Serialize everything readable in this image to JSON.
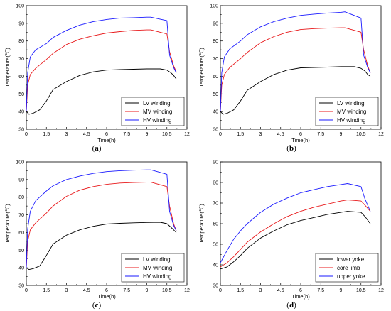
{
  "colors": {
    "black": "#000000",
    "red": "#e8191b",
    "blue": "#1a1aff"
  },
  "chart_data": [
    {
      "type": "line",
      "panel": "a",
      "xlabel": "Time(h)",
      "ylabel": "Temperature(℃)",
      "xlim": [
        0,
        12
      ],
      "ylim": [
        30,
        100
      ],
      "xticks": [
        "0",
        "1.5",
        "3",
        "4.5",
        "6",
        "7.5",
        "9",
        "10.5",
        "12"
      ],
      "yticks": [
        "30",
        "40",
        "50",
        "60",
        "70",
        "80",
        "90",
        "100"
      ],
      "legend": "bottom-right",
      "series": [
        {
          "name": "LV winding",
          "color": "#000000",
          "x": [
            0,
            0.2,
            0.5,
            1,
            1.5,
            2,
            3,
            4,
            5,
            6,
            7,
            8,
            9,
            10,
            10.5,
            10.8,
            11,
            11.2
          ],
          "y": [
            40,
            38.5,
            39,
            41,
            46,
            52.5,
            57,
            60.5,
            62.5,
            63.5,
            63.8,
            64,
            64.2,
            64.2,
            63.5,
            62,
            60.5,
            58.5
          ]
        },
        {
          "name": "MV winding",
          "color": "#e8191b",
          "x": [
            0,
            0.1,
            0.3,
            0.7,
            1.5,
            2,
            3,
            4,
            5,
            6,
            7,
            8,
            9,
            9.3,
            10.5,
            10.7,
            11,
            11.2
          ],
          "y": [
            40,
            55,
            61,
            64.5,
            69.5,
            73,
            78,
            81,
            83,
            84.5,
            85.3,
            86,
            86.3,
            86.3,
            84,
            74,
            66,
            62.5
          ]
        },
        {
          "name": "HV winding",
          "color": "#1a1aff",
          "x": [
            0,
            0.1,
            0.3,
            0.7,
            1.5,
            2,
            3,
            4,
            5,
            6,
            7,
            8,
            9,
            9.3,
            10.5,
            10.7,
            11,
            11.2
          ],
          "y": [
            40,
            62,
            71,
            75,
            78.5,
            82,
            86,
            89,
            91,
            92.2,
            93,
            93.2,
            93.5,
            93.5,
            91.5,
            72,
            65,
            62
          ]
        }
      ]
    },
    {
      "type": "line",
      "panel": "b",
      "xlabel": "Time(h)",
      "ylabel": "Temperature(℃)",
      "xlim": [
        0,
        12
      ],
      "ylim": [
        30,
        100
      ],
      "xticks": [
        "0",
        "1.5",
        "3",
        "4.5",
        "6",
        "7.5",
        "9",
        "10.5",
        "12"
      ],
      "yticks": [
        "30",
        "40",
        "50",
        "60",
        "70",
        "80",
        "90",
        "100"
      ],
      "legend": "bottom-right",
      "series": [
        {
          "name": "LV winding",
          "color": "#000000",
          "x": [
            0,
            0.2,
            0.5,
            1,
            1.5,
            2,
            3,
            4,
            5,
            6,
            7,
            8,
            9,
            10,
            10.5,
            10.8,
            11,
            11.2
          ],
          "y": [
            40,
            38.5,
            39,
            41,
            46,
            52,
            57,
            61,
            63.5,
            64.8,
            65,
            65.2,
            65.5,
            65.5,
            64.5,
            63,
            61,
            60
          ]
        },
        {
          "name": "MV winding",
          "color": "#e8191b",
          "x": [
            0,
            0.1,
            0.3,
            0.7,
            1.5,
            2,
            3,
            4,
            5,
            6,
            7,
            8,
            9,
            9.3,
            10.5,
            10.7,
            11,
            11.2
          ],
          "y": [
            40,
            55,
            61,
            65,
            70,
            73.5,
            79,
            82.5,
            85,
            86.5,
            87,
            87.3,
            87.5,
            87.5,
            85,
            75,
            66,
            62
          ]
        },
        {
          "name": "HV winding",
          "color": "#1a1aff",
          "x": [
            0,
            0.1,
            0.3,
            0.7,
            1.5,
            2,
            3,
            4,
            5,
            6,
            7,
            8,
            9,
            9.3,
            10.5,
            10.7,
            11,
            11.2
          ],
          "y": [
            40,
            62,
            71,
            75.5,
            80,
            83.5,
            88,
            91,
            93,
            94.5,
            95.2,
            95.8,
            96.2,
            96.5,
            93,
            72,
            65,
            62
          ]
        }
      ]
    },
    {
      "type": "line",
      "panel": "c",
      "xlabel": "Time(h)",
      "ylabel": "Temperature(℃)",
      "xlim": [
        0,
        12
      ],
      "ylim": [
        30,
        100
      ],
      "xticks": [
        "0",
        "1.5",
        "3",
        "4.5",
        "6",
        "7.5",
        "9",
        "10.5",
        "12"
      ],
      "yticks": [
        "30",
        "40",
        "50",
        "60",
        "70",
        "80",
        "90",
        "100"
      ],
      "legend": "bottom-right",
      "series": [
        {
          "name": "LV winding",
          "color": "#000000",
          "x": [
            0,
            0.2,
            0.5,
            1,
            1.5,
            2,
            3,
            4,
            5,
            6,
            7,
            8,
            9,
            10,
            10.5,
            10.8,
            11,
            11.2
          ],
          "y": [
            40,
            39,
            39.5,
            41,
            47,
            53.5,
            58.5,
            61.5,
            63.5,
            64.8,
            65.2,
            65.5,
            65.7,
            65.8,
            65,
            63,
            61.5,
            60
          ]
        },
        {
          "name": "MV winding",
          "color": "#e8191b",
          "x": [
            0,
            0.1,
            0.3,
            0.7,
            1.5,
            2,
            3,
            4,
            5,
            6,
            7,
            8,
            9,
            9.3,
            10.5,
            10.7,
            11,
            11.2
          ],
          "y": [
            40,
            55,
            61.5,
            65.5,
            71,
            75,
            80.5,
            84,
            86,
            87.3,
            88,
            88.3,
            88.5,
            88.5,
            86,
            75,
            65,
            61
          ]
        },
        {
          "name": "HV winding",
          "color": "#1a1aff",
          "x": [
            0,
            0.1,
            0.3,
            0.7,
            1.5,
            2,
            3,
            4,
            5,
            6,
            7,
            8,
            9,
            9.3,
            10.5,
            10.7,
            11,
            11.2
          ],
          "y": [
            40,
            62,
            72,
            78,
            83.5,
            86.5,
            90,
            92,
            93.5,
            94.5,
            95,
            95.3,
            95.5,
            95.5,
            93,
            72,
            64,
            61
          ]
        }
      ]
    },
    {
      "type": "line",
      "panel": "d",
      "xlabel": "Time(h)",
      "ylabel": "Temperature(℃)",
      "xlim": [
        0,
        12
      ],
      "ylim": [
        30,
        90
      ],
      "xticks": [
        "0",
        "1.5",
        "3",
        "4.5",
        "6",
        "7.5",
        "9",
        "10.5",
        "12"
      ],
      "yticks": [
        "30",
        "40",
        "50",
        "60",
        "70",
        "80",
        "90"
      ],
      "legend": "bottom-right",
      "series": [
        {
          "name": "lower yoke",
          "color": "#000000",
          "x": [
            0,
            0.5,
            1,
            1.5,
            2,
            3,
            4,
            5,
            6,
            7,
            8,
            9,
            9.5,
            10.5,
            10.8,
            11.2
          ],
          "y": [
            38,
            39,
            41.5,
            44.5,
            48,
            53,
            56.5,
            59.5,
            61.5,
            63,
            64.5,
            65.5,
            66,
            65.5,
            63.5,
            60
          ]
        },
        {
          "name": "core limb",
          "color": "#e8191b",
          "x": [
            0,
            0.5,
            1,
            1.5,
            2,
            3,
            4,
            5,
            6,
            7,
            8,
            9,
            9.5,
            10.5,
            10.8,
            11.2
          ],
          "y": [
            39,
            41,
            44,
            47.5,
            51,
            56,
            60,
            63.5,
            66,
            68,
            69.5,
            71,
            71.5,
            71,
            69,
            66
          ]
        },
        {
          "name": "upper yoke",
          "color": "#1a1aff",
          "x": [
            0,
            0.5,
            1,
            1.5,
            2,
            3,
            4,
            5,
            6,
            7,
            8,
            9,
            9.5,
            10.5,
            10.8,
            11.2
          ],
          "y": [
            41,
            47,
            52.5,
            56.5,
            60,
            65.5,
            69.5,
            72.5,
            75,
            76.5,
            78,
            79,
            79.5,
            78,
            72,
            66
          ]
        }
      ]
    }
  ],
  "panel_labels": [
    {
      "open": "(",
      "letter": "a",
      "close": ")"
    },
    {
      "open": "(",
      "letter": "b",
      "close": ")"
    },
    {
      "open": "(",
      "letter": "c",
      "close": ")"
    },
    {
      "open": "(",
      "letter": "d",
      "close": ")"
    }
  ]
}
